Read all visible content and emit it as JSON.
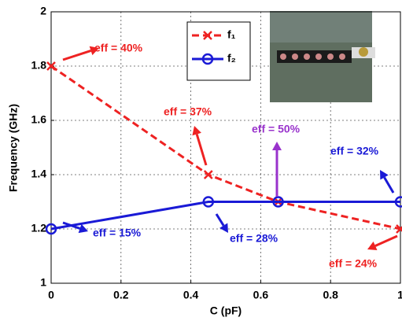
{
  "chart_data": {
    "type": "line",
    "xlabel": "C (pF)",
    "ylabel": "Frequency (GHz)",
    "xlim": [
      0,
      1
    ],
    "ylim": [
      1,
      2
    ],
    "xticks": [
      0,
      0.2,
      0.4,
      0.6,
      0.8,
      1
    ],
    "yticks": [
      1,
      1.2,
      1.4,
      1.6,
      1.8,
      2
    ],
    "grid": true,
    "legend": "top-center",
    "series": [
      {
        "name": "f₁",
        "color": "#ee2222",
        "dashed": true,
        "marker": "x",
        "x": [
          0,
          0.45,
          0.65,
          1
        ],
        "values": [
          1.8,
          1.4,
          1.3,
          1.2
        ]
      },
      {
        "name": "f₂",
        "color": "#1a1ad6",
        "dashed": false,
        "marker": "o",
        "x": [
          0,
          0.45,
          0.65,
          1
        ],
        "values": [
          1.2,
          1.3,
          1.3,
          1.3
        ]
      }
    ],
    "annotations": [
      {
        "text": "eff = 40%",
        "color": "#ee2222"
      },
      {
        "text": "eff = 37%",
        "color": "#ee2222"
      },
      {
        "text": "eff = 50%",
        "color": "#9933cc"
      },
      {
        "text": "eff = 32%",
        "color": "#1a1ad6"
      },
      {
        "text": "eff = 28%",
        "color": "#1a1ad6"
      },
      {
        "text": "eff = 15%",
        "color": "#1a1ad6"
      },
      {
        "text": "eff = 24%",
        "color": "#ee2222"
      }
    ]
  }
}
